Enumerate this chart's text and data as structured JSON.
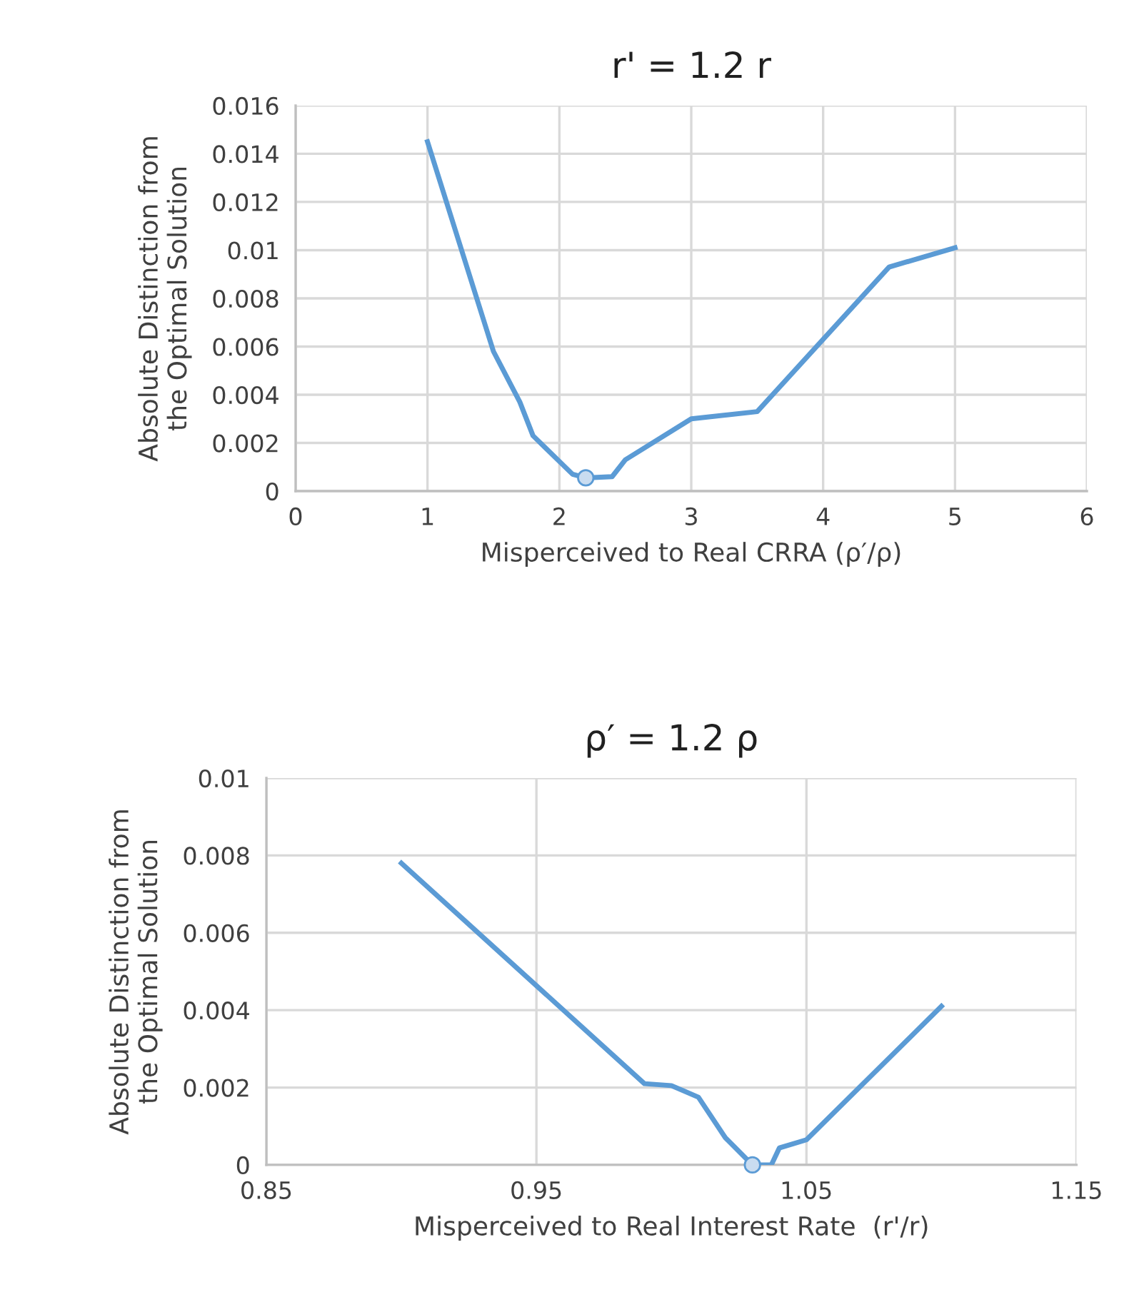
{
  "chart_data": [
    {
      "type": "line",
      "title": "r' = 1.2 r",
      "xlabel": "Misperceived to Real CRRA (ρ′/ρ)",
      "ylabel": "Absolute Distinction from\nthe Optimal Solution",
      "xlim": [
        0,
        6
      ],
      "xticks": [
        0,
        1,
        2,
        3,
        4,
        5,
        6
      ],
      "ylim": [
        0,
        0.016
      ],
      "yticks": [
        0,
        0.002,
        0.004,
        0.006,
        0.008,
        0.01,
        0.012,
        0.014,
        0.016
      ],
      "grid": true,
      "legend": false,
      "series": [
        {
          "color": "#5b9bd5",
          "marker": "none",
          "x": [
            1,
            1.5,
            1.7,
            1.8,
            2.1,
            2.2,
            2.4,
            2.5,
            3,
            3.5,
            4.5,
            5
          ],
          "values": [
            0.0145,
            0.0058,
            0.0037,
            0.0023,
            0.0007,
            0.00055,
            0.0006,
            0.0013,
            0.003,
            0.0033,
            0.0093,
            0.0101
          ]
        },
        {
          "type": "scatter",
          "color": "#c9dcf0",
          "marker": "circle",
          "x": [
            2.2
          ],
          "values": [
            0.00055
          ]
        }
      ]
    },
    {
      "type": "line",
      "title": "ρ′ = 1.2 ρ",
      "xlabel": "Misperceived to Real Interest Rate  (r'/r)",
      "ylabel": "Absolute Distinction from\nthe Optimal Solution",
      "xlim": [
        0.85,
        1.15
      ],
      "xticks": [
        0.85,
        0.95,
        1.05,
        1.15
      ],
      "ylim": [
        0,
        0.01
      ],
      "yticks": [
        0,
        0.002,
        0.004,
        0.006,
        0.008,
        0.01
      ],
      "grid": true,
      "legend": false,
      "series": [
        {
          "color": "#5b9bd5",
          "marker": "none",
          "x": [
            0.9,
            0.99,
            1.0,
            1.01,
            1.02,
            1.03,
            1.037,
            1.04,
            1.05,
            1.1
          ],
          "values": [
            0.0078,
            0.0021,
            0.00205,
            0.00175,
            0.0007,
            0,
            0,
            0.00044,
            0.00065,
            0.0041
          ]
        },
        {
          "type": "scatter",
          "color": "#c9dcf0",
          "marker": "circle",
          "x": [
            1.03
          ],
          "values": [
            0
          ]
        }
      ]
    }
  ]
}
